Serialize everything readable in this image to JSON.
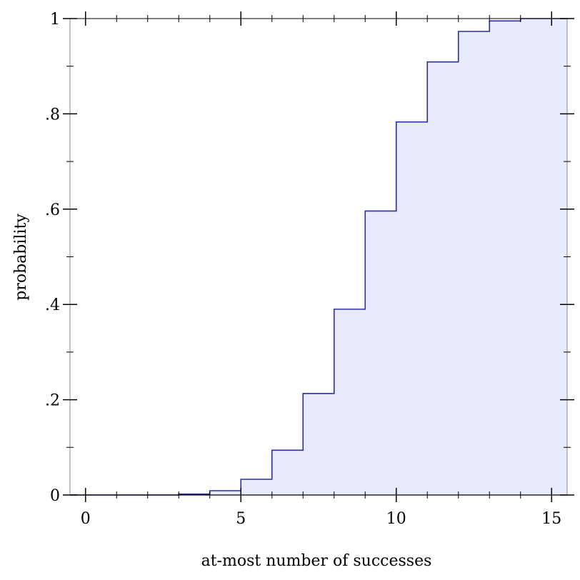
{
  "chart_data": {
    "type": "area",
    "step": "post",
    "xlabel": "at-most number of successes",
    "ylabel": "probability",
    "xlim": [
      -0.5,
      15.5
    ],
    "ylim": [
      0,
      1
    ],
    "x_ticks": [
      0,
      5,
      10,
      15
    ],
    "x_tick_labels": [
      "0",
      "5",
      "10",
      "15"
    ],
    "x_minor_ticks": [
      1,
      2,
      3,
      4,
      6,
      7,
      8,
      9,
      11,
      12,
      13,
      14
    ],
    "y_ticks": [
      0,
      0.2,
      0.4,
      0.6,
      0.8,
      1
    ],
    "y_tick_labels": [
      "0",
      ".2",
      ".4",
      ".6",
      ".8",
      "1"
    ],
    "y_minor_ticks": [
      0.1,
      0.3,
      0.5,
      0.7,
      0.9
    ],
    "grid": false,
    "series": [
      {
        "x": [
          -0.5,
          0,
          1,
          2,
          3,
          4,
          5,
          6,
          7,
          8,
          9,
          10,
          11,
          12,
          13,
          14,
          15
        ],
        "values": [
          0,
          0.0,
          0.0,
          0.0,
          0.002,
          0.009,
          0.033,
          0.094,
          0.213,
          0.39,
          0.596,
          0.783,
          0.909,
          0.973,
          0.995,
          1.0,
          1.0
        ]
      }
    ],
    "colors": {
      "line": "#2b2ea0",
      "fill": "#e8ebfe",
      "frame": "#000000"
    }
  }
}
